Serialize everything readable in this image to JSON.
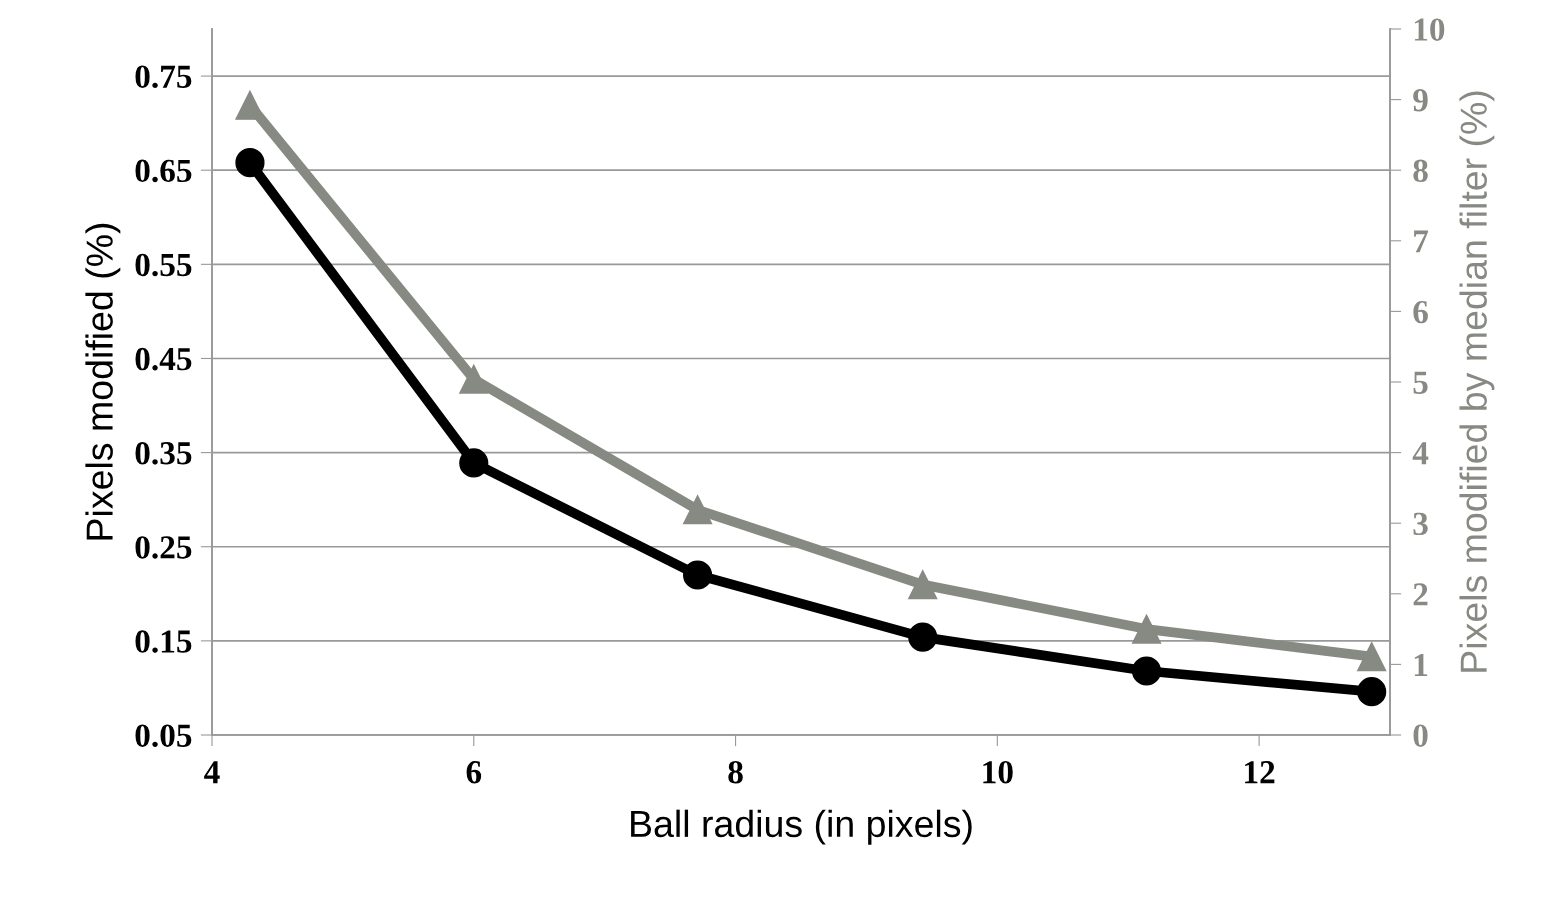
{
  "chart_data": {
    "type": "line",
    "xlabel": "Ball radius (in pixels)",
    "ylabel": "Pixels modified (%)",
    "y2label": "Pixels modified by median filter (%)",
    "xlim": [
      4,
      13
    ],
    "xticks": [
      4,
      6,
      8,
      10,
      12
    ],
    "ylim": [
      0.05,
      0.8
    ],
    "yticks": [
      0.05,
      0.15,
      0.25,
      0.35,
      0.45,
      0.55,
      0.65,
      0.75
    ],
    "y2lim": [
      0,
      10
    ],
    "y2ticks": [
      0,
      1,
      2,
      3,
      4,
      5,
      6,
      7,
      8,
      9,
      10
    ],
    "grid": "y",
    "legend": false,
    "line_style": "solid",
    "series": [
      {
        "color": "#000000",
        "marker": "circle",
        "x": [
          4.29,
          6.0,
          7.71,
          9.43,
          11.14,
          12.86
        ],
        "values": [
          0.658,
          0.339,
          0.22,
          0.154,
          0.118,
          0.096
        ]
      },
      {
        "color": "#878a82",
        "marker": "triangle",
        "axis": "y2",
        "x": [
          4.29,
          6.0,
          7.71,
          9.43,
          11.14,
          12.86
        ],
        "values": [
          8.92,
          5.04,
          3.19,
          2.13,
          1.5,
          1.11
        ]
      }
    ]
  }
}
